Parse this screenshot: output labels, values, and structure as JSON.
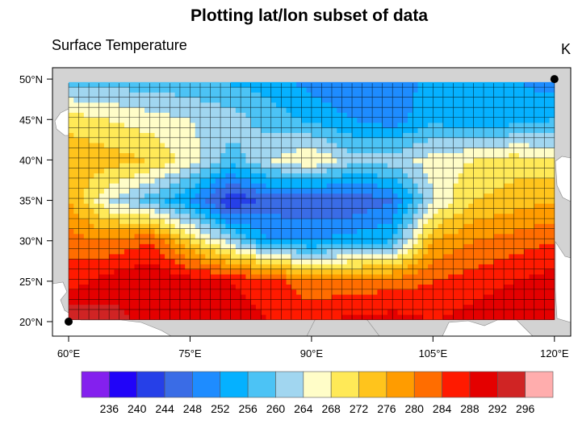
{
  "title": "Plotting lat/lon subset of data",
  "subtitle_left": "Surface Temperature",
  "subtitle_right": "K",
  "chart_data": {
    "type": "heatmap",
    "projection": "cylindrical equidistant",
    "lon_range": [
      60,
      120
    ],
    "lat_range": [
      20,
      50
    ],
    "x_ticks": [
      "60°E",
      "75°E",
      "90°E",
      "105°E",
      "120°E"
    ],
    "x_tick_values": [
      60,
      75,
      90,
      105,
      120
    ],
    "y_ticks": [
      "20°N",
      "25°N",
      "30°N",
      "35°N",
      "40°N",
      "45°N",
      "50°N"
    ],
    "y_tick_values": [
      20,
      25,
      30,
      35,
      40,
      45,
      50
    ],
    "grid_spacing_deg": 1.25,
    "grid_lines": true,
    "field_lons": [
      60,
      65,
      70,
      75,
      80,
      85,
      90,
      95,
      100,
      105,
      110,
      115,
      120
    ],
    "field_lats": [
      50,
      45,
      40,
      35,
      30,
      25,
      20
    ],
    "field_values": [
      [
        258,
        258,
        257,
        257,
        255,
        254,
        250,
        248,
        250,
        253,
        254,
        252,
        250
      ],
      [
        270,
        268,
        266,
        264,
        262,
        258,
        255,
        252,
        250,
        255,
        252,
        254,
        256
      ],
      [
        276,
        274,
        272,
        266,
        258,
        264,
        268,
        262,
        262,
        266,
        268,
        270,
        268
      ],
      [
        276,
        264,
        258,
        252,
        240,
        246,
        244,
        244,
        248,
        264,
        272,
        274,
        276
      ],
      [
        282,
        280,
        284,
        272,
        262,
        252,
        252,
        254,
        256,
        276,
        280,
        282,
        284
      ],
      [
        286,
        290,
        292,
        290,
        288,
        286,
        280,
        282,
        282,
        284,
        286,
        288,
        290
      ],
      [
        296,
        294,
        290,
        290,
        290,
        288,
        288,
        289,
        290,
        288,
        290,
        291,
        291
      ]
    ],
    "corner_markers": [
      [
        60,
        20
      ],
      [
        120,
        50
      ]
    ],
    "colorbar": {
      "levels": [
        "236",
        "240",
        "244",
        "248",
        "252",
        "256",
        "260",
        "264",
        "268",
        "272",
        "276",
        "280",
        "284",
        "288",
        "292",
        "296"
      ],
      "colors": [
        "#8420ee",
        "#2104f8",
        "#2640e8",
        "#3a6ce6",
        "#1e8cff",
        "#05b1ff",
        "#4cc3f5",
        "#a1d6f0",
        "#fffdc8",
        "#ffe957",
        "#ffc41c",
        "#ff9c00",
        "#ff6d00",
        "#ff1a00",
        "#e40000",
        "#d02424",
        "#ffadad"
      ],
      "orientation": "horizontal",
      "placement": "bottom"
    },
    "land_color": "#d3d3d3",
    "ocean_color": "#ffffff"
  }
}
